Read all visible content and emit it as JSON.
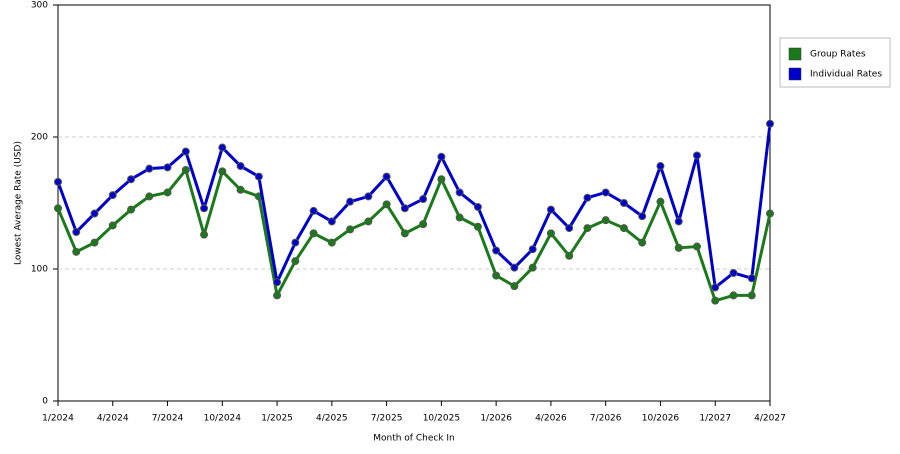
{
  "chart_data": {
    "type": "line",
    "x_label": "Month of Check In",
    "y_label": "Lowest Average Rate (USD)",
    "categories": [
      "1/2024",
      null,
      null,
      "4/2024",
      null,
      null,
      "7/2024",
      null,
      null,
      "10/2024",
      null,
      null,
      "1/2025",
      null,
      null,
      "4/2025",
      null,
      null,
      "7/2025",
      null,
      null,
      "10/2025",
      null,
      null,
      "1/2026",
      null,
      null,
      "4/2026",
      null,
      null,
      "7/2026",
      null,
      null,
      "10/2026",
      null,
      null,
      "1/2027",
      null,
      null,
      "4/2027"
    ],
    "series": [
      {
        "name": "Group Rates",
        "color": "#1a7a1a",
        "values": [
          146,
          113,
          120,
          133,
          145,
          155,
          158,
          175,
          126,
          174,
          160,
          155,
          80,
          106,
          127,
          120,
          130,
          136,
          149,
          127,
          134,
          168,
          139,
          132,
          95,
          87,
          101,
          127,
          110,
          131,
          137,
          131,
          120,
          151,
          116,
          117,
          76,
          80,
          80,
          142
        ]
      },
      {
        "name": "Individual Rates",
        "color": "#0000cc",
        "values": [
          166,
          128,
          142,
          156,
          168,
          176,
          177,
          189,
          146,
          192,
          178,
          170,
          90,
          120,
          144,
          136,
          151,
          155,
          170,
          146,
          153,
          185,
          158,
          147,
          114,
          101,
          115,
          145,
          131,
          154,
          158,
          150,
          140,
          178,
          136,
          186,
          86,
          97,
          93,
          210
        ]
      }
    ],
    "ylim": [
      0,
      300
    ],
    "yticks": [
      0,
      100,
      200,
      300
    ],
    "grid": true,
    "legend": "right"
  }
}
